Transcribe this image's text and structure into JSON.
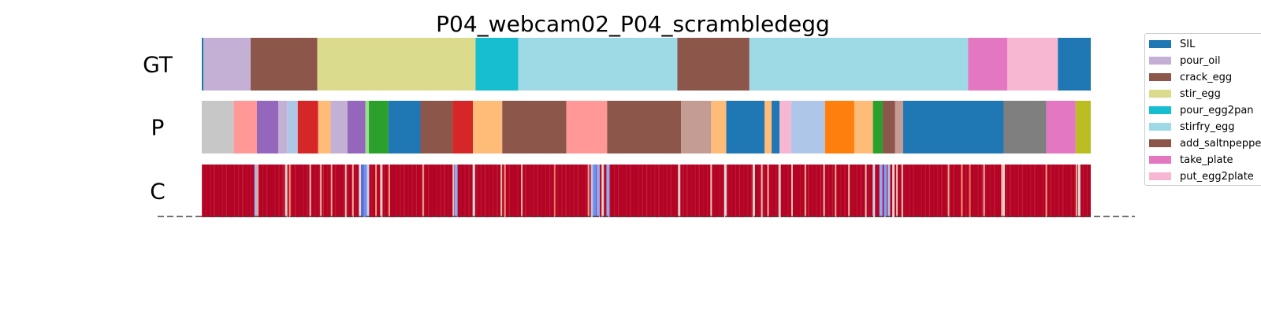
{
  "chart_data": {
    "type": "heatmap",
    "title": "P04_webcam02_P04_scrambledegg",
    "rows": [
      {
        "label": "GT",
        "segments": [
          {
            "action": "SIL",
            "start": 0,
            "end": 0.2
          },
          {
            "action": "pour_oil",
            "start": 0.2,
            "end": 5.5
          },
          {
            "action": "crack_egg",
            "start": 5.5,
            "end": 13.0
          },
          {
            "action": "stir_egg",
            "start": 13.0,
            "end": 30.8
          },
          {
            "action": "pour_egg2pan",
            "start": 30.8,
            "end": 35.6
          },
          {
            "action": "stirfry_egg",
            "start": 35.6,
            "end": 53.5
          },
          {
            "action": "add_saltnpepper",
            "start": 53.5,
            "end": 61.6
          },
          {
            "action": "stirfry_egg",
            "start": 61.6,
            "end": 86.2
          },
          {
            "action": "take_plate",
            "start": 86.2,
            "end": 90.6
          },
          {
            "action": "put_egg2plate",
            "start": 90.6,
            "end": 96.3
          },
          {
            "action": "SIL",
            "start": 96.3,
            "end": 100
          }
        ]
      },
      {
        "label": "P",
        "segments": [
          {
            "color": "#c7c7c7",
            "start": 0,
            "end": 3.6
          },
          {
            "color": "#ff9896",
            "start": 3.6,
            "end": 6.2
          },
          {
            "color": "#9467bd",
            "start": 6.2,
            "end": 8.6
          },
          {
            "color": "#c5b0d5",
            "start": 8.6,
            "end": 9.6
          },
          {
            "color": "#aec7e8",
            "start": 9.6,
            "end": 10.8
          },
          {
            "color": "#d62728",
            "start": 10.8,
            "end": 13.1
          },
          {
            "color": "#ffbb78",
            "start": 13.1,
            "end": 14.5
          },
          {
            "color": "#c5b0d5",
            "start": 14.5,
            "end": 16.4
          },
          {
            "color": "#9467bd",
            "start": 16.4,
            "end": 18.4
          },
          {
            "color": "#98df8a",
            "start": 18.4,
            "end": 18.8
          },
          {
            "color": "#2ca02c",
            "start": 18.8,
            "end": 21.0
          },
          {
            "color": "#1f77b4",
            "start": 21.0,
            "end": 24.6
          },
          {
            "color": "#8c564b",
            "start": 24.6,
            "end": 28.2
          },
          {
            "color": "#d62728",
            "start": 28.2,
            "end": 30.5
          },
          {
            "color": "#ffbb78",
            "start": 30.5,
            "end": 33.8
          },
          {
            "color": "#8c564b",
            "start": 33.8,
            "end": 41.0
          },
          {
            "color": "#ff9896",
            "start": 41.0,
            "end": 45.6
          },
          {
            "color": "#8c564b",
            "start": 45.6,
            "end": 53.9
          },
          {
            "color": "#c49c94",
            "start": 53.9,
            "end": 57.3
          },
          {
            "color": "#ffbb78",
            "start": 57.3,
            "end": 59.0
          },
          {
            "color": "#1f77b4",
            "start": 59.0,
            "end": 63.3
          },
          {
            "color": "#ffbb78",
            "start": 63.3,
            "end": 64.1
          },
          {
            "color": "#1f77b4",
            "start": 64.1,
            "end": 65.0
          },
          {
            "color": "#f7b6d2",
            "start": 65.0,
            "end": 66.3
          },
          {
            "color": "#aec7e8",
            "start": 66.3,
            "end": 70.1
          },
          {
            "color": "#ff7f0e",
            "start": 70.1,
            "end": 73.4
          },
          {
            "color": "#ffbb78",
            "start": 73.4,
            "end": 75.5
          },
          {
            "color": "#2ca02c",
            "start": 75.5,
            "end": 76.6
          },
          {
            "color": "#8c564b",
            "start": 76.6,
            "end": 78.0
          },
          {
            "color": "#c49c94",
            "start": 78.0,
            "end": 78.9
          },
          {
            "color": "#1f77b4",
            "start": 78.9,
            "end": 90.2
          },
          {
            "color": "#7f7f7f",
            "start": 90.2,
            "end": 95.0
          },
          {
            "color": "#e377c2",
            "start": 95.0,
            "end": 98.3
          },
          {
            "color": "#bcbd22",
            "start": 98.3,
            "end": 100
          }
        ]
      },
      {
        "label": "C",
        "colormap": "coolwarm",
        "base_value": 1.0,
        "dips": [
          [
            6.1,
            0.35
          ],
          [
            6.3,
            0.7
          ],
          [
            9.5,
            0.55
          ],
          [
            9.9,
            0.75
          ],
          [
            12.2,
            0.6
          ],
          [
            13.4,
            0.65
          ],
          [
            14.6,
            0.7
          ],
          [
            16.2,
            0.6
          ],
          [
            17.0,
            0.65
          ],
          [
            17.8,
            0.5
          ],
          [
            18.1,
            0.1
          ],
          [
            18.4,
            0.2
          ],
          [
            18.7,
            0.45
          ],
          [
            19.6,
            0.75
          ],
          [
            20.2,
            0.55
          ],
          [
            21.1,
            0.75
          ],
          [
            24.9,
            0.7
          ],
          [
            28.3,
            0.6
          ],
          [
            28.6,
            0.3
          ],
          [
            30.6,
            0.5
          ],
          [
            33.7,
            0.6
          ],
          [
            34.1,
            0.75
          ],
          [
            36.0,
            0.65
          ],
          [
            39.7,
            0.8
          ],
          [
            43.5,
            0.7
          ],
          [
            43.9,
            0.4
          ],
          [
            44.2,
            0.2
          ],
          [
            44.6,
            0.3
          ],
          [
            45.1,
            0.55
          ],
          [
            45.7,
            0.3
          ],
          [
            53.7,
            0.55
          ],
          [
            57.3,
            0.6
          ],
          [
            58.9,
            0.5
          ],
          [
            62.1,
            0.55
          ],
          [
            63.0,
            0.6
          ],
          [
            63.7,
            0.65
          ],
          [
            65.0,
            0.55
          ],
          [
            66.4,
            0.6
          ],
          [
            67.9,
            0.7
          ],
          [
            70.0,
            0.6
          ],
          [
            71.3,
            0.7
          ],
          [
            72.8,
            0.65
          ],
          [
            74.7,
            0.6
          ],
          [
            75.6,
            0.45
          ],
          [
            76.4,
            0.3
          ],
          [
            76.9,
            0.25
          ],
          [
            77.3,
            0.4
          ],
          [
            77.8,
            0.55
          ],
          [
            78.2,
            0.6
          ],
          [
            78.8,
            0.6
          ],
          [
            84.0,
            0.7
          ],
          [
            85.5,
            0.75
          ],
          [
            86.4,
            0.8
          ],
          [
            88.0,
            0.65
          ],
          [
            90.0,
            0.7
          ],
          [
            90.2,
            0.55
          ],
          [
            95.0,
            0.75
          ],
          [
            98.4,
            0.7
          ],
          [
            98.7,
            0.5
          ]
        ]
      }
    ],
    "x_range": [
      0,
      100
    ],
    "legend": {
      "placement": "right",
      "entries": [
        {
          "label": "SIL",
          "color": "#1f77b4"
        },
        {
          "label": "pour_oil",
          "color": "#c5b0d5"
        },
        {
          "label": "crack_egg",
          "color": "#8c564b"
        },
        {
          "label": "stir_egg",
          "color": "#dbdb8d"
        },
        {
          "label": "pour_egg2pan",
          "color": "#17becf"
        },
        {
          "label": "stirfry_egg",
          "color": "#9edae5"
        },
        {
          "label": "add_saltnpepper",
          "color": "#8c564b"
        },
        {
          "label": "take_plate",
          "color": "#e377c2"
        },
        {
          "label": "put_egg2plate",
          "color": "#f7b6d2"
        }
      ]
    },
    "grid": false,
    "baseline_style": "dashed"
  }
}
